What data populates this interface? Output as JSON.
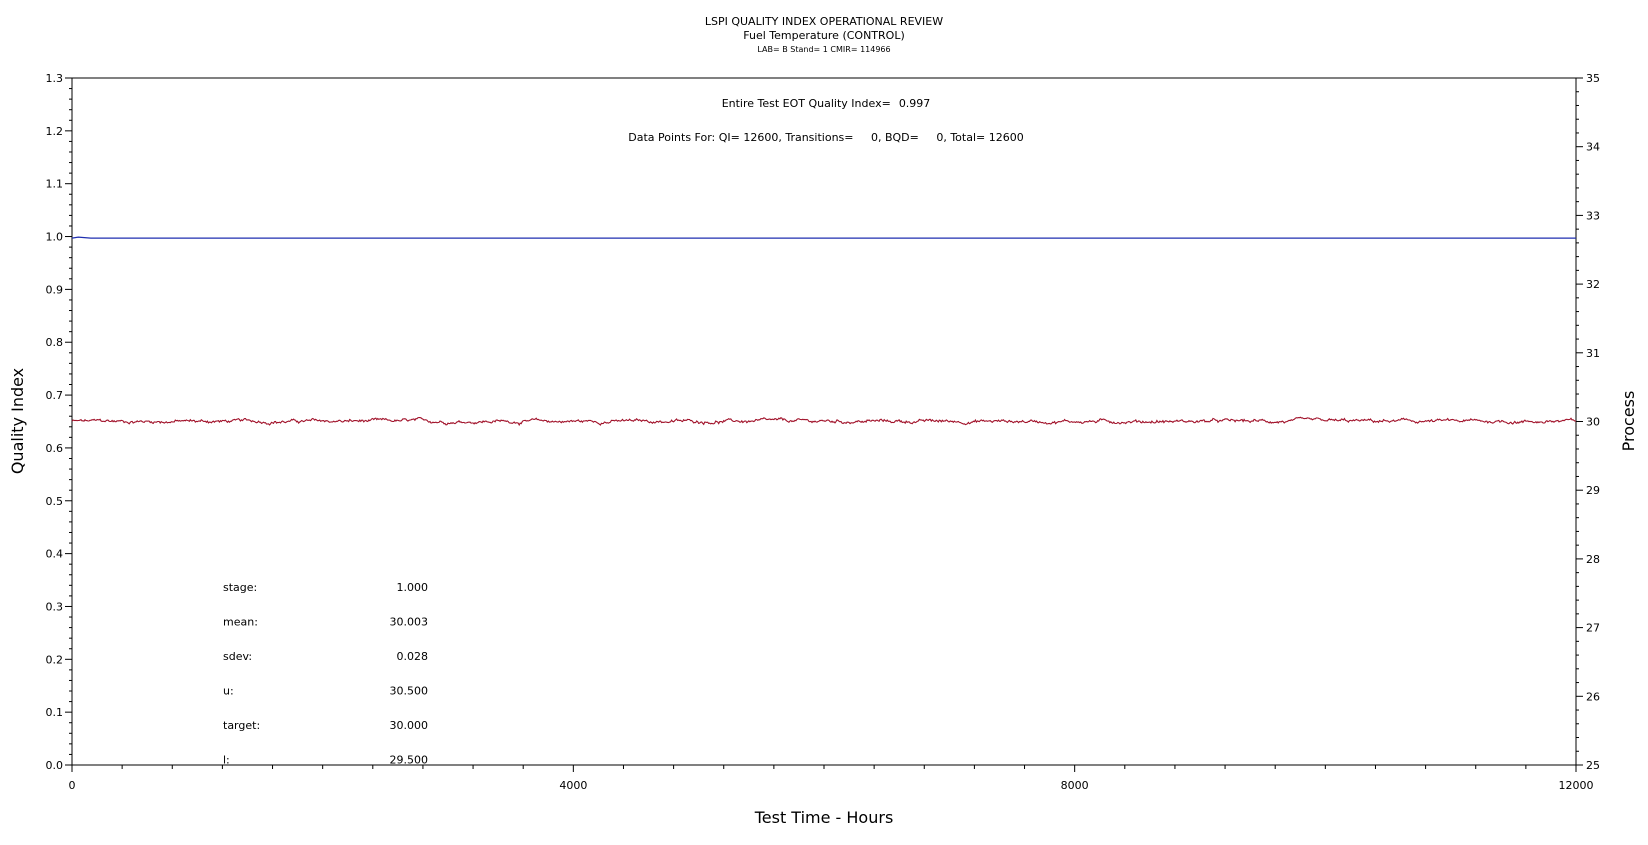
{
  "chart_data": {
    "type": "line",
    "title": "LSPI QUALITY INDEX OPERATIONAL REVIEW",
    "subtitle": "Fuel Temperature (CONTROL)",
    "subsubtitle": "LAB= B Stand= 1 CMIR= 114966",
    "xlabel": "Test Time - Hours",
    "ylabel_left": "Quality Index",
    "ylabel_right": "Process",
    "xlim": [
      0,
      12000
    ],
    "ylim_left": [
      0.0,
      1.3
    ],
    "ylim_right": [
      25,
      35
    ],
    "x_ticks": [
      0,
      4000,
      8000,
      12000
    ],
    "y_ticks_left": [
      0.0,
      0.1,
      0.2,
      0.3,
      0.4,
      0.5,
      0.6,
      0.7,
      0.8,
      0.9,
      1.0,
      1.1,
      1.2,
      1.3
    ],
    "y_ticks_right": [
      25,
      26,
      27,
      28,
      29,
      30,
      31,
      32,
      33,
      34,
      35
    ],
    "x_tick_labels": [
      "0",
      "4000",
      "8000",
      "12000"
    ],
    "y_tick_labels_left": [
      "0.0",
      "0.1",
      "0.2",
      "0.3",
      "0.4",
      "0.5",
      "0.6",
      "0.7",
      "0.8",
      "0.9",
      "1.0",
      "1.1",
      "1.2",
      "1.3"
    ],
    "y_tick_labels_right": [
      "25",
      "26",
      "27",
      "28",
      "29",
      "30",
      "31",
      "32",
      "33",
      "34",
      "35"
    ],
    "annotations": {
      "eot_text": "Entire Test EOT Quality Index=",
      "eot_value": "0.997",
      "data_points_text": "Data Points For: QI= 12600, Transitions=     0, BQD=     0, Total= 12600"
    },
    "stats": [
      {
        "label": "stage:",
        "value": "1.000"
      },
      {
        "label": "mean:",
        "value": "30.003"
      },
      {
        "label": "sdev:",
        "value": "0.028"
      },
      {
        "label": "u:",
        "value": "30.500"
      },
      {
        "label": "target:",
        "value": "30.000"
      },
      {
        "label": "l:",
        "value": "29.500"
      }
    ],
    "series": [
      {
        "axis": "left",
        "color": "#1f2fb0",
        "x": [
          0,
          50,
          100,
          150,
          200,
          12000
        ],
        "y": [
          0.997,
          0.999,
          0.998,
          0.997,
          0.997,
          0.997
        ]
      },
      {
        "axis": "right",
        "color": "#a1122a",
        "x_start": 0,
        "x_end": 12000,
        "mean": 30.003,
        "sdev": 0.028,
        "y_range": [
          29.92,
          30.08
        ]
      }
    ],
    "grid": false
  }
}
